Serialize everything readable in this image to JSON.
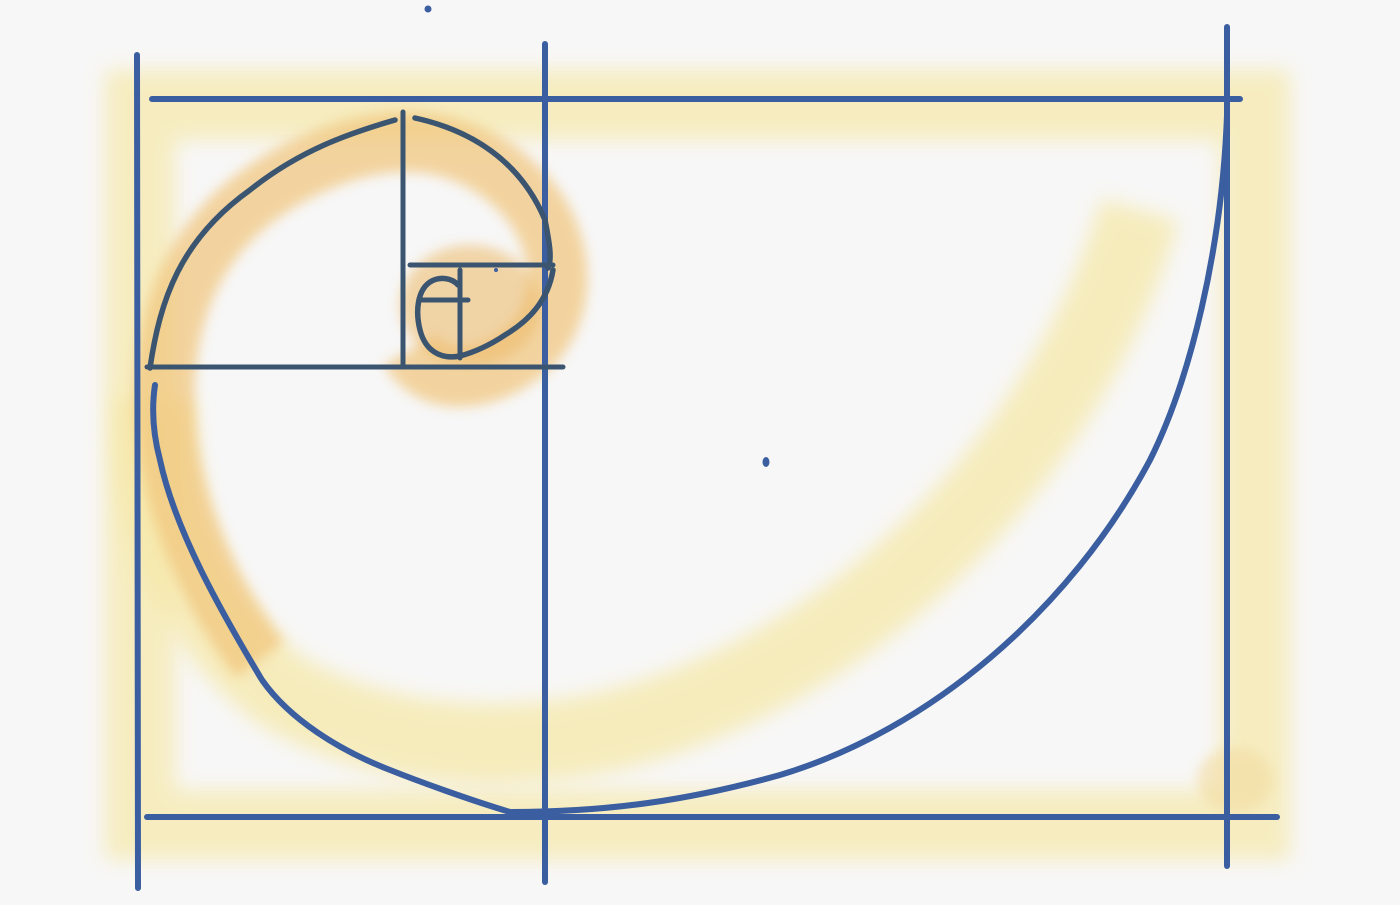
{
  "diagram": {
    "subject": "golden spiral",
    "colors": {
      "background": "#f7f7f7",
      "ink": "#3a5ea0",
      "ink_dark": "#3b5570",
      "wash_light": "#f6e7a6",
      "wash_mid": "#f0c878",
      "wash_dark": "#e9b45a"
    },
    "labels": []
  }
}
